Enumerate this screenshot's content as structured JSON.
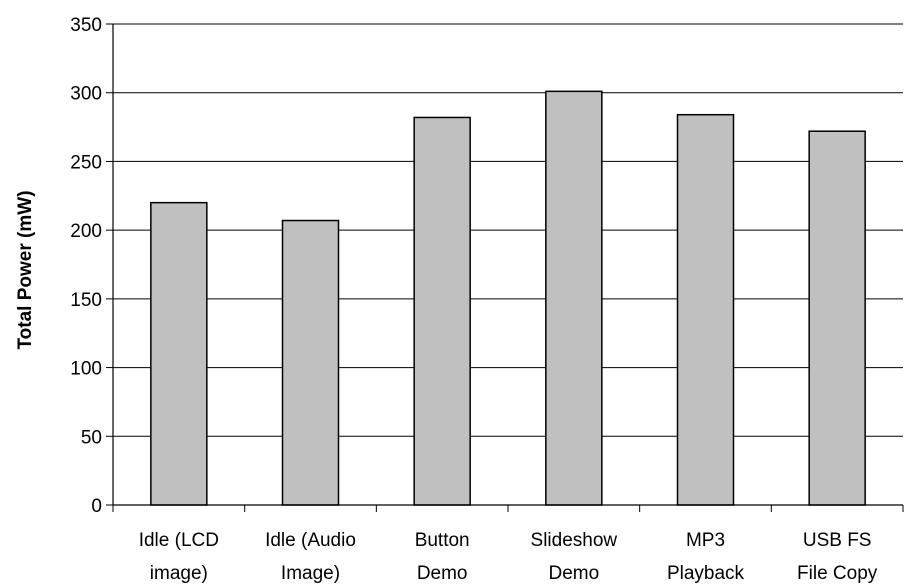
{
  "chart_data": {
    "type": "bar",
    "title": "",
    "xlabel": "",
    "ylabel": "Total Power (mW)",
    "ylim": [
      0,
      350
    ],
    "yticks": [
      0,
      50,
      100,
      150,
      200,
      250,
      300,
      350
    ],
    "grid": true,
    "legend": "none",
    "bar_color": "#c0c0c0",
    "categories": [
      [
        "Idle (LCD",
        "image)"
      ],
      [
        "Idle (Audio",
        "Image)"
      ],
      [
        "Button",
        "Demo"
      ],
      [
        "Slideshow",
        "Demo"
      ],
      [
        "MP3",
        "Playback"
      ],
      [
        "USB FS",
        "File Copy"
      ]
    ],
    "values": [
      220,
      207,
      282,
      301,
      284,
      272
    ]
  }
}
